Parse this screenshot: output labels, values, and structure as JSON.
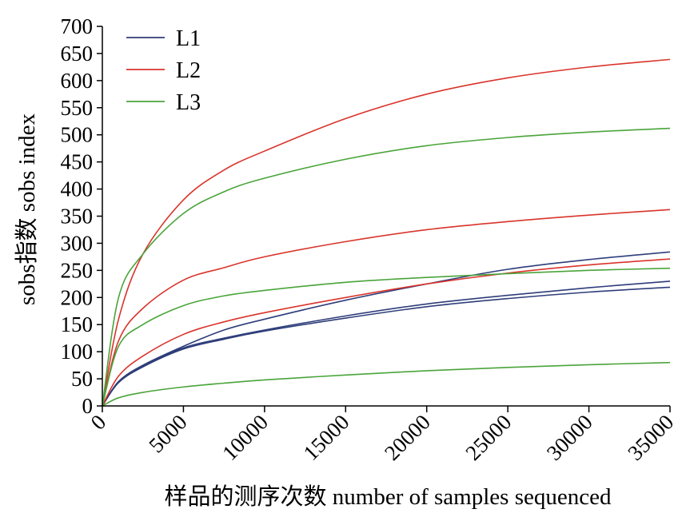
{
  "chart_data": {
    "type": "line",
    "xlabel": "样品的测序次数 number of samples sequenced",
    "ylabel": "sobs指数 sobs index",
    "xlim": [
      0,
      35000
    ],
    "ylim": [
      0,
      700
    ],
    "x_ticks": [
      "0",
      "5000",
      "10000",
      "15000",
      "20000",
      "25000",
      "30000",
      "35000"
    ],
    "y_ticks": [
      "0",
      "50",
      "100",
      "150",
      "200",
      "250",
      "300",
      "350",
      "400",
      "450",
      "500",
      "550",
      "600",
      "650",
      "700"
    ],
    "grid": false,
    "legend_position": "top-left",
    "legend": [
      {
        "name": "L1",
        "color": "#2e3d7a"
      },
      {
        "name": "L2",
        "color": "#d9342b"
      },
      {
        "name": "L3",
        "color": "#4aa43a"
      }
    ],
    "series": [
      {
        "group": "L1",
        "color": "#2e3d7a",
        "x": [
          0,
          1000,
          2500,
          5000,
          7500,
          10000,
          15000,
          20000,
          25000,
          30000,
          35000
        ],
        "y": [
          0,
          45,
          75,
          110,
          140,
          160,
          195,
          225,
          252,
          270,
          284
        ]
      },
      {
        "group": "L1",
        "color": "#2e3d7a",
        "x": [
          0,
          1000,
          2500,
          5000,
          7500,
          10000,
          15000,
          20000,
          25000,
          30000,
          35000
        ],
        "y": [
          0,
          43,
          72,
          105,
          123,
          138,
          162,
          183,
          198,
          210,
          219
        ]
      },
      {
        "group": "L1",
        "color": "#2e3d7a",
        "x": [
          0,
          1000,
          2500,
          5000,
          7500,
          10000,
          15000,
          20000,
          25000,
          30000,
          35000
        ],
        "y": [
          0,
          44,
          73,
          107,
          125,
          140,
          166,
          188,
          204,
          218,
          230
        ]
      },
      {
        "group": "L2",
        "color": "#d9342b",
        "x": [
          0,
          1000,
          2500,
          5000,
          7500,
          10000,
          15000,
          20000,
          25000,
          30000,
          35000
        ],
        "y": [
          0,
          160,
          280,
          380,
          435,
          470,
          530,
          575,
          605,
          625,
          639
        ]
      },
      {
        "group": "L2",
        "color": "#d9342b",
        "x": [
          0,
          1000,
          2500,
          5000,
          7500,
          10000,
          15000,
          20000,
          25000,
          30000,
          35000
        ],
        "y": [
          0,
          120,
          180,
          232,
          255,
          275,
          303,
          325,
          340,
          352,
          362
        ]
      },
      {
        "group": "L2",
        "color": "#d9342b",
        "x": [
          0,
          1000,
          2500,
          5000,
          7500,
          10000,
          15000,
          20000,
          25000,
          30000,
          35000
        ],
        "y": [
          0,
          55,
          92,
          132,
          155,
          172,
          200,
          225,
          245,
          260,
          271
        ]
      },
      {
        "group": "L3",
        "color": "#4aa43a",
        "x": [
          0,
          1000,
          2500,
          5000,
          7500,
          10000,
          15000,
          20000,
          25000,
          30000,
          35000
        ],
        "y": [
          0,
          200,
          280,
          355,
          395,
          420,
          455,
          480,
          495,
          505,
          512
        ]
      },
      {
        "group": "L3",
        "color": "#4aa43a",
        "x": [
          0,
          1000,
          2500,
          5000,
          7500,
          10000,
          15000,
          20000,
          25000,
          30000,
          35000
        ],
        "y": [
          0,
          110,
          150,
          185,
          203,
          213,
          228,
          237,
          244,
          250,
          254
        ]
      },
      {
        "group": "L3",
        "color": "#4aa43a",
        "x": [
          0,
          1000,
          2500,
          5000,
          7500,
          10000,
          15000,
          20000,
          25000,
          30000,
          35000
        ],
        "y": [
          0,
          15,
          25,
          35,
          42,
          48,
          57,
          65,
          71,
          76,
          80
        ]
      }
    ]
  }
}
